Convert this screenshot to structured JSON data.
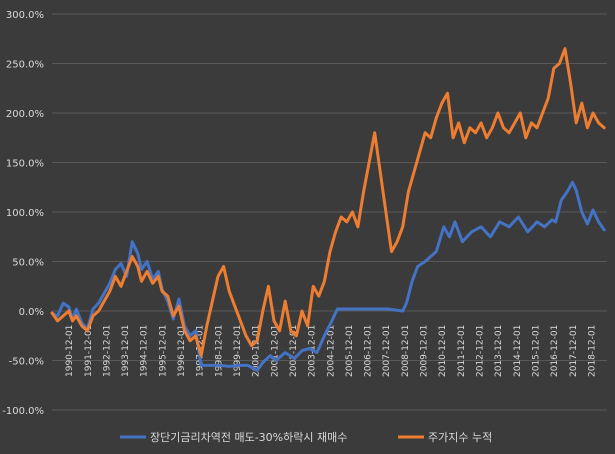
{
  "chart_data": {
    "type": "line",
    "ylim": [
      -100,
      300
    ],
    "y_ticks": [
      "300.0%",
      "250.0%",
      "200.0%",
      "150.0%",
      "100.0%",
      "50.0%",
      "0.0%",
      "-50.0%",
      "-100.0%"
    ],
    "y_tick_values": [
      300,
      250,
      200,
      150,
      100,
      50,
      0,
      -50,
      -100
    ],
    "x_ticks": [
      "1990-12-01",
      "1991-12-01",
      "1992-12-01",
      "1993-12-01",
      "1994-12-01",
      "1995-12-01",
      "1996-12-01",
      "1997-12-01",
      "1998-12-01",
      "1999-12-01",
      "2000-12-01",
      "2001-12-01",
      "2002-12-01",
      "2003-12-01",
      "2004-12-01",
      "2005-12-01",
      "2006-12-01",
      "2007-12-01",
      "2008-12-01",
      "2009-12-01",
      "2010-12-01",
      "2011-12-01",
      "2012-12-01",
      "2013-12-01",
      "2014-12-01",
      "2015-12-01",
      "2016-12-01",
      "2017-12-01",
      "2018-12-01"
    ],
    "x_range": [
      1990.0,
      2019.75
    ],
    "grid": true,
    "legend_position": "bottom",
    "series": [
      {
        "name": "장단기금리차역전 매도-30%하락시 재매수",
        "color": "#4472c4",
        "x": [
          1990.0,
          1990.3,
          1990.6,
          1990.9,
          1991.1,
          1991.3,
          1991.6,
          1991.9,
          1992.2,
          1992.5,
          1992.8,
          1993.1,
          1993.4,
          1993.7,
          1994.0,
          1994.3,
          1994.6,
          1994.8,
          1995.1,
          1995.4,
          1995.7,
          1995.9,
          1996.2,
          1996.5,
          1996.8,
          1997.1,
          1997.4,
          1997.7,
          1998.0,
          1998.5,
          1999.0,
          1999.5,
          2000.0,
          2000.5,
          2001.0,
          2001.3,
          2001.7,
          2002.0,
          2002.5,
          2003.0,
          2003.4,
          2003.8,
          2004.2,
          2004.6,
          2005.0,
          2005.3,
          2005.6,
          2006.0,
          2007.0,
          2008.0,
          2008.8,
          2009.0,
          2009.3,
          2009.6,
          2010.0,
          2010.3,
          2010.6,
          2011.0,
          2011.3,
          2011.6,
          2012.0,
          2012.5,
          2013.0,
          2013.5,
          2014.0,
          2014.5,
          2015.0,
          2015.5,
          2016.0,
          2016.4,
          2016.8,
          2017.0,
          2017.3,
          2017.6,
          2017.9,
          2018.1,
          2018.4,
          2018.7,
          2019.0,
          2019.3,
          2019.6
        ],
        "values": [
          -2,
          -5,
          8,
          4,
          -8,
          2,
          -12,
          -18,
          2,
          8,
          18,
          28,
          42,
          48,
          35,
          70,
          58,
          42,
          50,
          32,
          40,
          22,
          10,
          -8,
          12,
          -15,
          -25,
          -20,
          -55,
          -55,
          -55,
          -56,
          -55,
          -55,
          -60,
          -52,
          -45,
          -50,
          -42,
          -48,
          -40,
          -38,
          -42,
          -25,
          -10,
          2,
          2,
          2,
          2,
          2,
          0,
          8,
          30,
          45,
          50,
          55,
          60,
          85,
          75,
          90,
          70,
          80,
          85,
          75,
          90,
          85,
          95,
          80,
          90,
          85,
          92,
          90,
          112,
          120,
          130,
          122,
          100,
          88,
          102,
          90,
          82
        ]
      },
      {
        "name": "주가지수 누적",
        "color": "#ed7d31",
        "x": [
          1990.0,
          1990.3,
          1990.6,
          1990.9,
          1991.1,
          1991.3,
          1991.6,
          1991.9,
          1992.2,
          1992.5,
          1992.8,
          1993.1,
          1993.4,
          1993.7,
          1994.0,
          1994.3,
          1994.6,
          1994.8,
          1995.1,
          1995.4,
          1995.7,
          1995.9,
          1996.2,
          1996.5,
          1996.8,
          1997.1,
          1997.4,
          1997.7,
          1998.0,
          1998.3,
          1998.6,
          1998.9,
          1999.2,
          1999.5,
          1999.8,
          2000.1,
          2000.4,
          2000.7,
          2001.0,
          2001.3,
          2001.6,
          2001.9,
          2002.2,
          2002.5,
          2002.8,
          2003.1,
          2003.4,
          2003.7,
          2004.0,
          2004.3,
          2004.6,
          2004.9,
          2005.2,
          2005.5,
          2005.8,
          2006.1,
          2006.4,
          2006.7,
          2007.0,
          2007.3,
          2007.6,
          2007.9,
          2008.2,
          2008.5,
          2008.8,
          2009.1,
          2009.4,
          2009.7,
          2010.0,
          2010.3,
          2010.6,
          2010.9,
          2011.2,
          2011.5,
          2011.8,
          2012.1,
          2012.4,
          2012.7,
          2013.0,
          2013.3,
          2013.6,
          2013.9,
          2014.2,
          2014.5,
          2014.8,
          2015.1,
          2015.4,
          2015.7,
          2016.0,
          2016.3,
          2016.6,
          2016.9,
          2017.2,
          2017.5,
          2017.8,
          2018.1,
          2018.4,
          2018.7,
          2019.0,
          2019.3,
          2019.6
        ],
        "values": [
          -2,
          -10,
          -5,
          0,
          -10,
          -5,
          -15,
          -20,
          -5,
          0,
          10,
          20,
          35,
          25,
          40,
          55,
          45,
          30,
          40,
          28,
          35,
          20,
          15,
          -5,
          5,
          -20,
          -30,
          -25,
          -45,
          -15,
          10,
          35,
          45,
          20,
          5,
          -10,
          -25,
          -35,
          -30,
          0,
          25,
          -10,
          -20,
          10,
          -20,
          -25,
          0,
          -15,
          25,
          15,
          30,
          60,
          80,
          95,
          90,
          100,
          85,
          120,
          150,
          180,
          140,
          100,
          60,
          70,
          85,
          120,
          140,
          160,
          180,
          175,
          195,
          210,
          220,
          175,
          190,
          170,
          185,
          180,
          190,
          175,
          185,
          200,
          185,
          180,
          190,
          200,
          175,
          190,
          185,
          200,
          215,
          245,
          250,
          265,
          230,
          190,
          210,
          185,
          200,
          190,
          185
        ]
      }
    ]
  }
}
